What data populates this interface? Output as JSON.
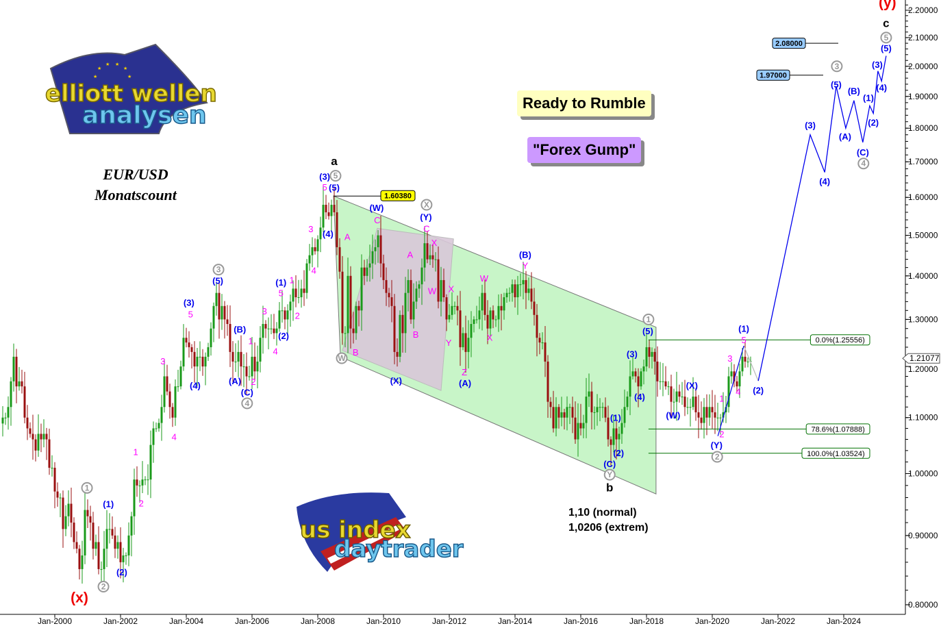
{
  "header": {
    "symbol": "EUR/USD",
    "subtitle": "Monatscount",
    "banner1": "Ready to Rumble",
    "banner2": "\"Forex Gump\"",
    "logo1_text": "elliott wellen analysen",
    "logo2_text": "us index daytrader"
  },
  "colors": {
    "up": "#1a9a1a",
    "down": "#9a1010",
    "channel": "#c8f5c8",
    "triangle": "#d8c8d8",
    "wave_blue": "#0000ee",
    "wave_magenta": "#ff00ff",
    "fib": "#007000",
    "banner1": "#ffffc0",
    "banner2": "#cc99ff",
    "target_box": "#99ccff",
    "high_box": "#ffff00"
  },
  "chart_data": {
    "type": "candlestick",
    "scale": "log",
    "ylim": [
      0.79,
      2.24
    ],
    "xlim": [
      1998.35,
      2025.9
    ],
    "yticks": [
      "2.20000",
      "2.10000",
      "2.00000",
      "1.90000",
      "1.80000",
      "1.70000",
      "1.60000",
      "1.50000",
      "1.40000",
      "1.30000",
      "1.20000",
      "1.10000",
      "1.00000",
      "0.90000",
      "0.80000"
    ],
    "xticks": [
      "Jan-2000",
      "Jan-2002",
      "Jan-2004",
      "Jan-2006",
      "Jan-2008",
      "Jan-2010",
      "Jan-2012",
      "Jan-2014",
      "Jan-2016",
      "Jan-2018",
      "Jan-2020",
      "Jan-2022",
      "Jan-2024"
    ],
    "current_price": "1.21077",
    "start_month": "1998-06",
    "monthly_closes": [
      1.1,
      1.1,
      1.12,
      1.17,
      1.22,
      1.16,
      1.17,
      1.16,
      1.1,
      1.08,
      1.07,
      1.06,
      1.04,
      1.07,
      1.06,
      1.07,
      1.06,
      1.01,
      1.01,
      0.97,
      0.96,
      0.96,
      0.91,
      0.93,
      0.95,
      0.92,
      0.89,
      0.88,
      0.85,
      0.87,
      0.94,
      0.93,
      0.92,
      0.88,
      0.89,
      0.85,
      0.85,
      0.88,
      0.91,
      0.91,
      0.9,
      0.88,
      0.89,
      0.86,
      0.87,
      0.87,
      0.9,
      0.93,
      0.99,
      0.98,
      0.98,
      0.99,
      0.99,
      0.99,
      1.05,
      1.08,
      1.08,
      1.09,
      1.12,
      1.18,
      1.15,
      1.12,
      1.1,
      1.16,
      1.16,
      1.2,
      1.26,
      1.25,
      1.24,
      1.23,
      1.2,
      1.22,
      1.22,
      1.2,
      1.22,
      1.24,
      1.28,
      1.33,
      1.36,
      1.3,
      1.33,
      1.3,
      1.29,
      1.23,
      1.21,
      1.21,
      1.23,
      1.2,
      1.2,
      1.18,
      1.18,
      1.22,
      1.19,
      1.21,
      1.26,
      1.29,
      1.28,
      1.28,
      1.28,
      1.27,
      1.28,
      1.32,
      1.32,
      1.3,
      1.32,
      1.34,
      1.37,
      1.35,
      1.35,
      1.37,
      1.36,
      1.43,
      1.45,
      1.47,
      1.46,
      1.49,
      1.52,
      1.58,
      1.56,
      1.55,
      1.58,
      1.56,
      1.47,
      1.41,
      1.27,
      1.27,
      1.4,
      1.28,
      1.27,
      1.33,
      1.32,
      1.42,
      1.4,
      1.42,
      1.43,
      1.46,
      1.47,
      1.5,
      1.43,
      1.39,
      1.36,
      1.35,
      1.33,
      1.23,
      1.22,
      1.31,
      1.27,
      1.36,
      1.39,
      1.3,
      1.34,
      1.37,
      1.38,
      1.42,
      1.48,
      1.44,
      1.45,
      1.44,
      1.44,
      1.34,
      1.39,
      1.35,
      1.3,
      1.31,
      1.33,
      1.33,
      1.32,
      1.24,
      1.27,
      1.23,
      1.26,
      1.29,
      1.3,
      1.3,
      1.32,
      1.36,
      1.31,
      1.28,
      1.32,
      1.3,
      1.3,
      1.33,
      1.32,
      1.35,
      1.36,
      1.36,
      1.38,
      1.35,
      1.38,
      1.38,
      1.39,
      1.36,
      1.37,
      1.34,
      1.31,
      1.26,
      1.25,
      1.25,
      1.21,
      1.13,
      1.12,
      1.08,
      1.12,
      1.1,
      1.11,
      1.1,
      1.12,
      1.12,
      1.1,
      1.06,
      1.09,
      1.08,
      1.09,
      1.14,
      1.15,
      1.11,
      1.11,
      1.12,
      1.12,
      1.12,
      1.1,
      1.06,
      1.05,
      1.08,
      1.06,
      1.07,
      1.09,
      1.12,
      1.14,
      1.18,
      1.19,
      1.18,
      1.16,
      1.19,
      1.2,
      1.24,
      1.22,
      1.23,
      1.21,
      1.17,
      1.17,
      1.17,
      1.16,
      1.16,
      1.13,
      1.13,
      1.15,
      1.14,
      1.14,
      1.12,
      1.12,
      1.12,
      1.14,
      1.11,
      1.1,
      1.09,
      1.12,
      1.1,
      1.12,
      1.11,
      1.1,
      1.1,
      1.1,
      1.11,
      1.12,
      1.18,
      1.19,
      1.17,
      1.16,
      1.19,
      1.22,
      1.21,
      1.21,
      1.2108
    ],
    "high_marker": {
      "label": "1.60380",
      "date": 2008.48,
      "price": 1.6038
    },
    "channel": [
      [
        2008.48,
        1.604
      ],
      [
        2018.29,
        1.283
      ],
      [
        2018.29,
        0.966
      ],
      [
        2008.69,
        1.22
      ]
    ],
    "triangle": [
      [
        2009.81,
        1.518
      ],
      [
        2012.13,
        1.491
      ],
      [
        2011.75,
        1.152
      ],
      [
        2008.75,
        1.233
      ]
    ],
    "fib_levels": [
      {
        "label": "0.0%(1.25556)",
        "price": 1.25556,
        "from": 2018.06
      },
      {
        "label": "78.6%(1.07888)",
        "price": 1.07888,
        "from": 2018.06
      },
      {
        "label": "100.0%(1.03524)",
        "price": 1.03524,
        "from": 2018.06
      }
    ],
    "targets": [
      {
        "label": "2.08000",
        "price": 2.08
      },
      {
        "label": "1.97000",
        "price": 1.97
      }
    ],
    "projection": [
      [
        2021.4,
        1.171
      ],
      [
        2022.98,
        1.78
      ],
      [
        2023.42,
        1.67
      ],
      [
        2023.77,
        1.933
      ],
      [
        2024.06,
        1.8
      ],
      [
        2024.31,
        1.887
      ],
      [
        2024.58,
        1.757
      ],
      [
        2024.79,
        1.87
      ],
      [
        2024.9,
        1.846
      ],
      [
        2025.04,
        1.984
      ],
      [
        2025.15,
        1.95
      ],
      [
        2025.29,
        2.036
      ]
    ],
    "grey_path": [
      [
        2020.96,
        1.243
      ],
      [
        2021.4,
        1.171
      ]
    ],
    "blue_path": [
      [
        2020.17,
        1.066
      ],
      [
        2020.96,
        1.243
      ]
    ],
    "notes": [
      "1,10 (normal)",
      "1,0206 (extrem)"
    ],
    "labels": [
      {
        "t": "(x)",
        "d": 2000.75,
        "p": 0.808,
        "s": "red"
      },
      {
        "t": "1",
        "d": 2000.98,
        "p": 0.976,
        "s": "grey"
      },
      {
        "t": "2",
        "d": 2001.48,
        "p": 0.825,
        "s": "grey"
      },
      {
        "t": "(1)",
        "d": 2001.63,
        "p": 0.95,
        "s": "blue"
      },
      {
        "t": "(2)",
        "d": 2002.04,
        "p": 0.846,
        "s": "blue"
      },
      {
        "t": "1",
        "d": 2002.46,
        "p": 1.038,
        "s": "magenta"
      },
      {
        "t": "2",
        "d": 2002.63,
        "p": 0.951,
        "s": "magenta"
      },
      {
        "t": "3",
        "d": 2003.29,
        "p": 1.211,
        "s": "magenta"
      },
      {
        "t": "4",
        "d": 2003.63,
        "p": 1.065,
        "s": "magenta"
      },
      {
        "t": "(3)",
        "d": 2004.08,
        "p": 1.338,
        "s": "blue"
      },
      {
        "t": "5",
        "d": 2004.13,
        "p": 1.312,
        "s": "magenta"
      },
      {
        "t": "(4)",
        "d": 2004.27,
        "p": 1.162,
        "s": "blue"
      },
      {
        "t": "3",
        "d": 2004.98,
        "p": 1.415,
        "s": "grey"
      },
      {
        "t": "(5)",
        "d": 2004.96,
        "p": 1.389,
        "s": "blue"
      },
      {
        "t": "(B)",
        "d": 2005.63,
        "p": 1.279,
        "s": "blue"
      },
      {
        "t": "1",
        "d": 2005.96,
        "p": 1.254,
        "s": "magenta"
      },
      {
        "t": "(A)",
        "d": 2005.48,
        "p": 1.171,
        "s": "blue"
      },
      {
        "t": "2",
        "d": 2006.04,
        "p": 1.17,
        "s": "magenta"
      },
      {
        "t": "(C)",
        "d": 2005.85,
        "p": 1.149,
        "s": "blue"
      },
      {
        "t": "4",
        "d": 2005.85,
        "p": 1.127,
        "s": "grey"
      },
      {
        "t": "3",
        "d": 2006.38,
        "p": 1.319,
        "s": "magenta"
      },
      {
        "t": "4",
        "d": 2006.71,
        "p": 1.232,
        "s": "magenta"
      },
      {
        "t": "(2)",
        "d": 2006.96,
        "p": 1.265,
        "s": "blue"
      },
      {
        "t": "2",
        "d": 2007.38,
        "p": 1.309,
        "s": "magenta"
      },
      {
        "t": "(1)",
        "d": 2006.88,
        "p": 1.385,
        "s": "blue"
      },
      {
        "t": "5",
        "d": 2006.88,
        "p": 1.36,
        "s": "magenta"
      },
      {
        "t": "1",
        "d": 2007.21,
        "p": 1.391,
        "s": "magenta"
      },
      {
        "t": "4",
        "d": 2007.88,
        "p": 1.414,
        "s": "magenta"
      },
      {
        "t": "3",
        "d": 2007.79,
        "p": 1.517,
        "s": "magenta"
      },
      {
        "t": "(4)",
        "d": 2008.31,
        "p": 1.505,
        "s": "blue"
      },
      {
        "t": "5",
        "d": 2008.21,
        "p": 1.629,
        "s": "magenta"
      },
      {
        "t": "(3)",
        "d": 2008.21,
        "p": 1.658,
        "s": "blue"
      },
      {
        "t": "5",
        "d": 2008.54,
        "p": 1.66,
        "s": "grey"
      },
      {
        "t": "(5)",
        "d": 2008.5,
        "p": 1.63,
        "s": "blue"
      },
      {
        "t": "a",
        "d": 2008.5,
        "p": 1.7,
        "s": "black"
      },
      {
        "t": "(W)",
        "d": 2009.79,
        "p": 1.573,
        "s": "blue"
      },
      {
        "t": "C",
        "d": 2009.81,
        "p": 1.54,
        "s": "magenta"
      },
      {
        "t": "A",
        "d": 2008.9,
        "p": 1.497,
        "s": "magenta"
      },
      {
        "t": "B",
        "d": 2009.15,
        "p": 1.23,
        "s": "magenta"
      },
      {
        "t": "W",
        "d": 2008.73,
        "p": 1.217,
        "s": "grey"
      },
      {
        "t": "(X)",
        "d": 2010.38,
        "p": 1.172,
        "s": "blue"
      },
      {
        "t": "A",
        "d": 2010.81,
        "p": 1.452,
        "s": "magenta"
      },
      {
        "t": "B",
        "d": 2010.98,
        "p": 1.268,
        "s": "magenta"
      },
      {
        "t": "X",
        "d": 2011.31,
        "p": 1.58,
        "s": "grey"
      },
      {
        "t": "(Y)",
        "d": 2011.29,
        "p": 1.548,
        "s": "blue"
      },
      {
        "t": "C",
        "d": 2011.31,
        "p": 1.518,
        "s": "magenta"
      },
      {
        "t": "X",
        "d": 2011.54,
        "p": 1.482,
        "s": "magenta"
      },
      {
        "t": "W",
        "d": 2011.48,
        "p": 1.365,
        "s": "magenta"
      },
      {
        "t": "X",
        "d": 2012.06,
        "p": 1.37,
        "s": "magenta"
      },
      {
        "t": "Y",
        "d": 2011.98,
        "p": 1.25,
        "s": "magenta"
      },
      {
        "t": "Z",
        "d": 2012.46,
        "p": 1.189,
        "s": "magenta"
      },
      {
        "t": "(A)",
        "d": 2012.48,
        "p": 1.167,
        "s": "blue"
      },
      {
        "t": "W",
        "d": 2013.06,
        "p": 1.395,
        "s": "magenta"
      },
      {
        "t": "X",
        "d": 2013.23,
        "p": 1.261,
        "s": "magenta"
      },
      {
        "t": "(B)",
        "d": 2014.31,
        "p": 1.452,
        "s": "blue"
      },
      {
        "t": "Y",
        "d": 2014.31,
        "p": 1.425,
        "s": "magenta"
      },
      {
        "t": "1",
        "d": 2018.06,
        "p": 1.3,
        "s": "grey"
      },
      {
        "t": "(5)",
        "d": 2018.04,
        "p": 1.275,
        "s": "blue"
      },
      {
        "t": "(3)",
        "d": 2017.56,
        "p": 1.226,
        "s": "blue"
      },
      {
        "t": "(4)",
        "d": 2017.79,
        "p": 1.14,
        "s": "blue"
      },
      {
        "t": "(1)",
        "d": 2017.06,
        "p": 1.1,
        "s": "blue"
      },
      {
        "t": "(2)",
        "d": 2017.15,
        "p": 1.036,
        "s": "blue"
      },
      {
        "t": "(C)",
        "d": 2016.88,
        "p": 1.021,
        "s": "blue"
      },
      {
        "t": "Y",
        "d": 2016.88,
        "p": 1.001,
        "s": "grey"
      },
      {
        "t": "b",
        "d": 2016.88,
        "p": 0.976,
        "s": "black"
      },
      {
        "t": "(W)",
        "d": 2018.81,
        "p": 1.105,
        "s": "blue"
      },
      {
        "t": "(X)",
        "d": 2019.38,
        "p": 1.162,
        "s": "blue"
      },
      {
        "t": "(Y)",
        "d": 2020.13,
        "p": 1.05,
        "s": "blue"
      },
      {
        "t": "2",
        "d": 2020.15,
        "p": 1.029,
        "s": "grey"
      },
      {
        "t": "2",
        "d": 2020.29,
        "p": 1.064,
        "s": "magenta"
      },
      {
        "t": "1",
        "d": 2020.29,
        "p": 1.137,
        "s": "magenta"
      },
      {
        "t": "3",
        "d": 2020.54,
        "p": 1.217,
        "s": "magenta"
      },
      {
        "t": "4",
        "d": 2020.79,
        "p": 1.15,
        "s": "magenta"
      },
      {
        "t": "5",
        "d": 2020.96,
        "p": 1.256,
        "s": "magenta"
      },
      {
        "t": "(1)",
        "d": 2020.96,
        "p": 1.28,
        "s": "blue"
      },
      {
        "t": "(2)",
        "d": 2021.4,
        "p": 1.153,
        "s": "blue"
      },
      {
        "t": "(3)",
        "d": 2022.98,
        "p": 1.81,
        "s": "blue"
      },
      {
        "t": "(4)",
        "d": 2023.42,
        "p": 1.645,
        "s": "blue"
      },
      {
        "t": "(5)",
        "d": 2023.77,
        "p": 1.94,
        "s": "blue"
      },
      {
        "t": "3",
        "d": 2023.79,
        "p": 2.0,
        "s": "grey"
      },
      {
        "t": "(A)",
        "d": 2024.04,
        "p": 1.775,
        "s": "blue"
      },
      {
        "t": "(B)",
        "d": 2024.31,
        "p": 1.918,
        "s": "blue"
      },
      {
        "t": "(C)",
        "d": 2024.58,
        "p": 1.728,
        "s": "blue"
      },
      {
        "t": "4",
        "d": 2024.6,
        "p": 1.695,
        "s": "grey"
      },
      {
        "t": "(1)",
        "d": 2024.75,
        "p": 1.896,
        "s": "blue"
      },
      {
        "t": "(2)",
        "d": 2024.9,
        "p": 1.818,
        "s": "blue"
      },
      {
        "t": "(3)",
        "d": 2025.02,
        "p": 2.006,
        "s": "blue"
      },
      {
        "t": "(4)",
        "d": 2025.15,
        "p": 1.93,
        "s": "blue"
      },
      {
        "t": "(5)",
        "d": 2025.29,
        "p": 2.064,
        "s": "blue"
      },
      {
        "t": "5",
        "d": 2025.29,
        "p": 2.1,
        "s": "grey"
      },
      {
        "t": "c",
        "d": 2025.29,
        "p": 2.15,
        "s": "black"
      },
      {
        "t": "(y)",
        "d": 2025.33,
        "p": 2.225,
        "s": "red"
      }
    ]
  }
}
